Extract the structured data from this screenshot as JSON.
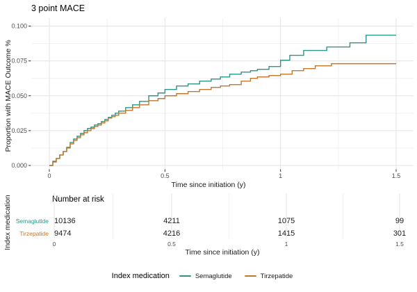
{
  "title": "3 point MACE",
  "chart_data": {
    "type": "line",
    "step": true,
    "title": "3 point MACE",
    "xlabel": "Time since initiation (y)",
    "ylabel": "Proportion with MACE Outcome %",
    "xlim": [
      0,
      1.5
    ],
    "ylim": [
      0,
      0.1
    ],
    "x_ticks": [
      0,
      0.5,
      1,
      1.5
    ],
    "x_tick_labels": [
      "0",
      "0.5",
      "1",
      "1.5"
    ],
    "y_ticks": [
      0,
      0.025,
      0.05,
      0.075,
      0.1
    ],
    "y_tick_labels": [
      "0.000",
      "0.025",
      "0.050",
      "0.075",
      "0.100"
    ],
    "grid": true,
    "legend_title": "Index medication",
    "legend_position": "bottom",
    "series": [
      {
        "name": "Semaglutide",
        "color": "#2a9488",
        "points": [
          [
            0,
            0
          ],
          [
            0.015,
            0.003
          ],
          [
            0.03,
            0.005
          ],
          [
            0.045,
            0.0075
          ],
          [
            0.06,
            0.01
          ],
          [
            0.075,
            0.013
          ],
          [
            0.09,
            0.0165
          ],
          [
            0.105,
            0.019
          ],
          [
            0.12,
            0.021
          ],
          [
            0.135,
            0.023
          ],
          [
            0.15,
            0.025
          ],
          [
            0.165,
            0.0265
          ],
          [
            0.18,
            0.0275
          ],
          [
            0.195,
            0.029
          ],
          [
            0.21,
            0.03
          ],
          [
            0.225,
            0.0315
          ],
          [
            0.24,
            0.033
          ],
          [
            0.255,
            0.0345
          ],
          [
            0.27,
            0.036
          ],
          [
            0.285,
            0.0375
          ],
          [
            0.3,
            0.039
          ],
          [
            0.33,
            0.0415
          ],
          [
            0.36,
            0.0435
          ],
          [
            0.39,
            0.046
          ],
          [
            0.43,
            0.05
          ],
          [
            0.47,
            0.052
          ],
          [
            0.5,
            0.0545
          ],
          [
            0.55,
            0.057
          ],
          [
            0.6,
            0.0585
          ],
          [
            0.65,
            0.0605
          ],
          [
            0.7,
            0.062
          ],
          [
            0.74,
            0.0635
          ],
          [
            0.78,
            0.0655
          ],
          [
            0.83,
            0.067
          ],
          [
            0.87,
            0.068
          ],
          [
            0.9,
            0.069
          ],
          [
            0.95,
            0.071
          ],
          [
            1.0,
            0.0755
          ],
          [
            1.04,
            0.079
          ],
          [
            1.1,
            0.0825
          ],
          [
            1.2,
            0.085
          ],
          [
            1.3,
            0.088
          ],
          [
            1.37,
            0.0935
          ],
          [
            1.5,
            0.0935
          ]
        ]
      },
      {
        "name": "Tirzepatide",
        "color": "#c1762c",
        "points": [
          [
            0,
            0
          ],
          [
            0.015,
            0.0025
          ],
          [
            0.03,
            0.005
          ],
          [
            0.045,
            0.0075
          ],
          [
            0.06,
            0.01
          ],
          [
            0.075,
            0.0125
          ],
          [
            0.09,
            0.0155
          ],
          [
            0.105,
            0.018
          ],
          [
            0.12,
            0.02
          ],
          [
            0.135,
            0.022
          ],
          [
            0.15,
            0.0235
          ],
          [
            0.165,
            0.025
          ],
          [
            0.18,
            0.0265
          ],
          [
            0.195,
            0.028
          ],
          [
            0.21,
            0.029
          ],
          [
            0.225,
            0.0305
          ],
          [
            0.24,
            0.032
          ],
          [
            0.255,
            0.034
          ],
          [
            0.27,
            0.035
          ],
          [
            0.285,
            0.036
          ],
          [
            0.3,
            0.0375
          ],
          [
            0.33,
            0.0395
          ],
          [
            0.36,
            0.0415
          ],
          [
            0.39,
            0.0435
          ],
          [
            0.43,
            0.0465
          ],
          [
            0.47,
            0.048
          ],
          [
            0.5,
            0.05
          ],
          [
            0.55,
            0.0515
          ],
          [
            0.6,
            0.053
          ],
          [
            0.65,
            0.0545
          ],
          [
            0.7,
            0.056
          ],
          [
            0.74,
            0.057
          ],
          [
            0.78,
            0.058
          ],
          [
            0.83,
            0.0605
          ],
          [
            0.87,
            0.0625
          ],
          [
            0.9,
            0.0635
          ],
          [
            0.95,
            0.0645
          ],
          [
            1.0,
            0.0655
          ],
          [
            1.05,
            0.068
          ],
          [
            1.1,
            0.0695
          ],
          [
            1.15,
            0.0715
          ],
          [
            1.22,
            0.073
          ],
          [
            1.5,
            0.073
          ]
        ]
      }
    ]
  },
  "risk_table": {
    "heading": "Number at risk",
    "y_axis_label": "Index medication",
    "xlabel": "Time since initiation (y)",
    "time_points": [
      "0",
      "0.5",
      "1",
      "1.5"
    ],
    "rows": [
      {
        "label": "Semaglutide",
        "color": "#2a9488",
        "counts": [
          "10136",
          "4211",
          "1075",
          "99"
        ]
      },
      {
        "label": "Tirzepatide",
        "color": "#c1762c",
        "counts": [
          "9474",
          "4216",
          "1415",
          "301"
        ]
      }
    ]
  },
  "legend": {
    "title": "Index medication",
    "items": [
      {
        "label": "Semaglutide",
        "color": "#2a9488"
      },
      {
        "label": "Tirzepatide",
        "color": "#c1762c"
      }
    ]
  }
}
